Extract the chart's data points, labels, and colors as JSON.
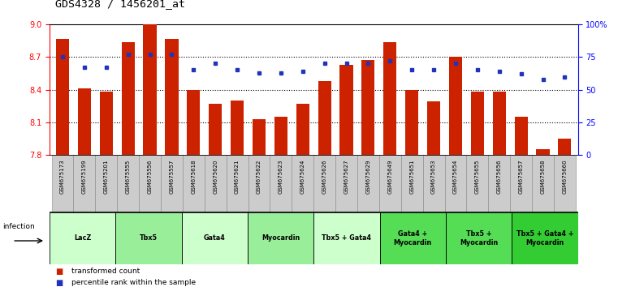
{
  "title": "GDS4328 / 1456201_at",
  "samples": [
    "GSM675173",
    "GSM675199",
    "GSM675201",
    "GSM675555",
    "GSM675556",
    "GSM675557",
    "GSM675618",
    "GSM675620",
    "GSM675621",
    "GSM675622",
    "GSM675623",
    "GSM675624",
    "GSM675626",
    "GSM675627",
    "GSM675629",
    "GSM675649",
    "GSM675651",
    "GSM675653",
    "GSM675654",
    "GSM675655",
    "GSM675656",
    "GSM675657",
    "GSM675658",
    "GSM675660"
  ],
  "red_values": [
    8.87,
    8.41,
    8.38,
    8.84,
    9.0,
    8.87,
    8.4,
    8.27,
    8.3,
    8.13,
    8.15,
    8.27,
    8.48,
    8.63,
    8.67,
    8.84,
    8.4,
    8.29,
    8.7,
    8.38,
    8.38,
    8.15,
    7.85,
    7.95
  ],
  "blue_values": [
    75,
    67,
    67,
    77,
    77,
    77,
    65,
    70,
    65,
    63,
    63,
    64,
    70,
    70,
    70,
    72,
    65,
    65,
    70,
    65,
    64,
    62,
    58,
    60
  ],
  "groups": [
    {
      "label": "LacZ",
      "start": 0,
      "end": 3,
      "color": "#ccffcc"
    },
    {
      "label": "Tbx5",
      "start": 3,
      "end": 6,
      "color": "#99ee99"
    },
    {
      "label": "Gata4",
      "start": 6,
      "end": 9,
      "color": "#ccffcc"
    },
    {
      "label": "Myocardin",
      "start": 9,
      "end": 12,
      "color": "#99ee99"
    },
    {
      "label": "Tbx5 + Gata4",
      "start": 12,
      "end": 15,
      "color": "#ccffcc"
    },
    {
      "label": "Gata4 +\nMyocardin",
      "start": 15,
      "end": 18,
      "color": "#55dd55"
    },
    {
      "label": "Tbx5 +\nMyocardin",
      "start": 18,
      "end": 21,
      "color": "#55dd55"
    },
    {
      "label": "Tbx5 + Gata4 +\nMyocardin",
      "start": 21,
      "end": 24,
      "color": "#33cc33"
    }
  ],
  "ylim_left": [
    7.8,
    9.0
  ],
  "yticks_left": [
    7.8,
    8.1,
    8.4,
    8.7,
    9.0
  ],
  "yticks_right": [
    0,
    25,
    50,
    75,
    100
  ],
  "bar_color": "#cc2200",
  "dot_color": "#2233bb",
  "bg_color": "#ffffff"
}
